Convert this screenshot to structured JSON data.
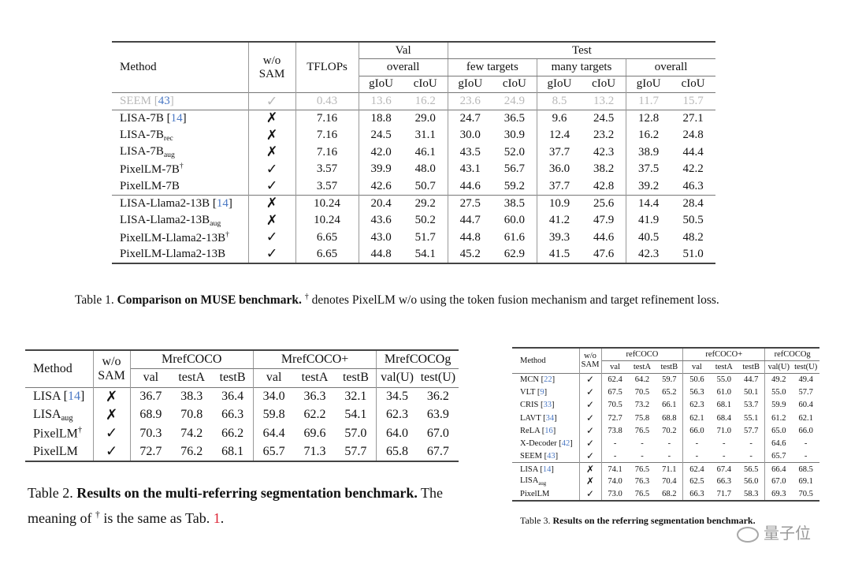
{
  "table1": {
    "h_method": "Method",
    "h_wo": "w/o",
    "h_sam": "SAM",
    "h_tflops": "TFLOPs",
    "h_val": "Val",
    "h_test": "Test",
    "h_overall": "overall",
    "h_few": "few targets",
    "h_many": "many targets",
    "metrics": [
      "gIoU",
      "cIoU",
      "gIoU",
      "cIoU",
      "gIoU",
      "cIoU",
      "gIoU",
      "cIoU"
    ],
    "groups": [
      [
        {
          "method": "SEEM",
          "ref": "43",
          "wosam": "✓",
          "cells": [
            "0.43",
            "13.6",
            "16.2",
            "23.6",
            "24.9",
            "8.5",
            "13.2",
            "11.7",
            "15.7"
          ],
          "bold": [],
          "gray": true
        }
      ],
      [
        {
          "method": "LISA-7B",
          "ref": "14",
          "wosam": "✗",
          "cells": [
            "7.16",
            "18.8",
            "29.0",
            "24.7",
            "36.5",
            "9.6",
            "24.5",
            "12.8",
            "27.1"
          ],
          "bold": []
        },
        {
          "method": "LISA-7B",
          "sub": "rec",
          "wosam": "✗",
          "cells": [
            "7.16",
            "24.5",
            "31.1",
            "30.0",
            "30.9",
            "12.4",
            "23.2",
            "16.2",
            "24.8"
          ],
          "bold": []
        },
        {
          "method": "LISA-7B",
          "sub": "aug",
          "wosam": "✗",
          "cells": [
            "7.16",
            "42.0",
            "46.1",
            "43.5",
            "52.0",
            "37.7",
            "42.3",
            "38.9",
            "44.4"
          ],
          "bold": []
        },
        {
          "method": "PixelLM-7B",
          "sup": "†",
          "wosam": "✓",
          "cells": [
            "3.57",
            "39.9",
            "48.0",
            "43.1",
            "56.7",
            "36.0",
            "38.2",
            "37.5",
            "42.2"
          ],
          "bold": [
            0
          ]
        },
        {
          "method": "PixelLM-7B",
          "wosam": "✓",
          "cells": [
            "3.57",
            "42.6",
            "50.7",
            "44.6",
            "59.2",
            "37.7",
            "42.8",
            "39.2",
            "46.3"
          ],
          "bold": [
            0,
            1,
            2,
            3,
            4,
            5,
            6,
            7,
            8
          ]
        }
      ],
      [
        {
          "method": "LISA-Llama2-13B",
          "ref": "14",
          "wosam": "✗",
          "cells": [
            "10.24",
            "20.4",
            "29.2",
            "27.5",
            "38.5",
            "10.9",
            "25.6",
            "14.4",
            "28.4"
          ],
          "bold": []
        },
        {
          "method": "LISA-Llama2-13B",
          "sub": "aug",
          "wosam": "✗",
          "cells": [
            "10.24",
            "43.6",
            "50.2",
            "44.7",
            "60.0",
            "41.2",
            "47.9",
            "41.9",
            "50.5"
          ],
          "bold": [
            6
          ]
        },
        {
          "method": "PixelLM-Llama2-13B",
          "sup": "†",
          "wosam": "✓",
          "cells": [
            "6.65",
            "43.0",
            "51.7",
            "44.8",
            "61.6",
            "39.3",
            "44.6",
            "40.5",
            "48.2"
          ],
          "bold": [
            0
          ]
        },
        {
          "method": "PixelLM-Llama2-13B",
          "wosam": "✓",
          "cells": [
            "6.65",
            "44.8",
            "54.1",
            "45.2",
            "62.9",
            "41.5",
            "47.6",
            "42.3",
            "51.0"
          ],
          "bold": [
            0,
            1,
            2,
            3,
            4,
            5,
            7,
            8
          ]
        }
      ]
    ],
    "caption_label": "Table 1.",
    "caption_bold": "Comparison on MUSE benchmark.",
    "caption_sup": "†",
    "caption_text": " denotes PixelLM w/o using the token fusion mechanism and target refinement loss."
  },
  "table2": {
    "h_method": "Method",
    "h_wo": "w/o",
    "h_sam": "SAM",
    "datasets": [
      "MrefCOCO",
      "MrefCOCO+",
      "MrefCOCOg"
    ],
    "metrics": [
      "val",
      "testA",
      "testB",
      "val",
      "testA",
      "testB",
      "val(U)",
      "test(U)"
    ],
    "groups": [
      [
        {
          "method": "LISA",
          "ref": "14",
          "wosam": "✗",
          "cells": [
            "36.7",
            "38.3",
            "36.4",
            "34.0",
            "36.3",
            "32.1",
            "34.5",
            "36.2"
          ],
          "bold": []
        },
        {
          "method": "LISA",
          "sub": "aug",
          "wosam": "✗",
          "cells": [
            "68.9",
            "70.8",
            "66.3",
            "59.8",
            "62.2",
            "54.1",
            "62.3",
            "63.9"
          ],
          "bold": []
        },
        {
          "method": "PixelLM",
          "sup": "†",
          "wosam": "✓",
          "cells": [
            "70.3",
            "74.2",
            "66.2",
            "64.4",
            "69.6",
            "57.0",
            "64.0",
            "67.0"
          ],
          "bold": []
        },
        {
          "method": "PixelLM",
          "wosam": "✓",
          "cells": [
            "72.7",
            "76.2",
            "68.1",
            "65.7",
            "71.3",
            "57.7",
            "65.8",
            "67.7"
          ],
          "bold": [
            0,
            1,
            2,
            3,
            4,
            5,
            6,
            7
          ]
        }
      ]
    ],
    "caption_label": "Table 2.",
    "caption_bold": "Results on the multi-referring segmentation benchmark.",
    "caption_text1": " The meaning of ",
    "caption_sup": "†",
    "caption_text2": " is the same as Tab. ",
    "caption_ref": "1",
    "caption_end": "."
  },
  "table3": {
    "h_method": "Method",
    "h_wo": "w/o",
    "h_sam": "SAM",
    "datasets": [
      "refCOCO",
      "refCOCO+",
      "refCOCOg"
    ],
    "metrics": [
      "val",
      "testA",
      "testB",
      "val",
      "testA",
      "testB",
      "val(U)",
      "test(U)"
    ],
    "groups": [
      [
        {
          "method": "MCN",
          "ref": "22",
          "wosam": "✓",
          "cells": [
            "62.4",
            "64.2",
            "59.7",
            "50.6",
            "55.0",
            "44.7",
            "49.2",
            "49.4"
          ],
          "bold": []
        },
        {
          "method": "VLT",
          "ref": "9",
          "wosam": "✓",
          "cells": [
            "67.5",
            "70.5",
            "65.2",
            "56.3",
            "61.0",
            "50.1",
            "55.0",
            "57.7"
          ],
          "bold": []
        },
        {
          "method": "CRIS",
          "ref": "33",
          "wosam": "✓",
          "cells": [
            "70.5",
            "73.2",
            "66.1",
            "62.3",
            "68.1",
            "53.7",
            "59.9",
            "60.4"
          ],
          "bold": []
        },
        {
          "method": "LAVT",
          "ref": "34",
          "wosam": "✓",
          "cells": [
            "72.7",
            "75.8",
            "68.8",
            "62.1",
            "68.4",
            "55.1",
            "61.2",
            "62.1"
          ],
          "bold": []
        },
        {
          "method": "ReLA",
          "ref": "16",
          "wosam": "✓",
          "cells": [
            "73.8",
            "76.5",
            "70.2",
            "66.0",
            "71.0",
            "57.7",
            "65.0",
            "66.0"
          ],
          "bold": []
        },
        {
          "method": "X-Decoder",
          "ref": "42",
          "wosam": "✓",
          "cells": [
            "-",
            "-",
            "-",
            "-",
            "-",
            "-",
            "64.6",
            "-"
          ],
          "bold": []
        },
        {
          "method": "SEEM",
          "ref": "43",
          "wosam": "✓",
          "cells": [
            "-",
            "-",
            "-",
            "-",
            "-",
            "-",
            "65.7",
            "-"
          ],
          "bold": []
        }
      ],
      [
        {
          "method": "LISA",
          "ref": "14",
          "wosam": "✗",
          "cells": [
            "74.1",
            "76.5",
            "71.1",
            "62.4",
            "67.4",
            "56.5",
            "66.4",
            "68.5"
          ],
          "bold": [
            0,
            1,
            2
          ]
        },
        {
          "method": "LISA",
          "sub": "aug",
          "wosam": "✗",
          "cells": [
            "74.0",
            "76.3",
            "70.4",
            "62.5",
            "66.3",
            "56.0",
            "67.0",
            "69.1"
          ],
          "bold": []
        },
        {
          "method": "PixelLM",
          "wosam": "✓",
          "cells": [
            "73.0",
            "76.5",
            "68.2",
            "66.3",
            "71.7",
            "58.3",
            "69.3",
            "70.5"
          ],
          "bold": [
            1,
            3,
            4,
            5,
            6,
            7
          ]
        }
      ]
    ],
    "caption_label": "Table 3.",
    "caption_bold": "Results on the referring segmentation benchmark."
  },
  "watermark": "量子位",
  "ref_color": "#4a78c4",
  "gray_color": "#b8b8b8"
}
